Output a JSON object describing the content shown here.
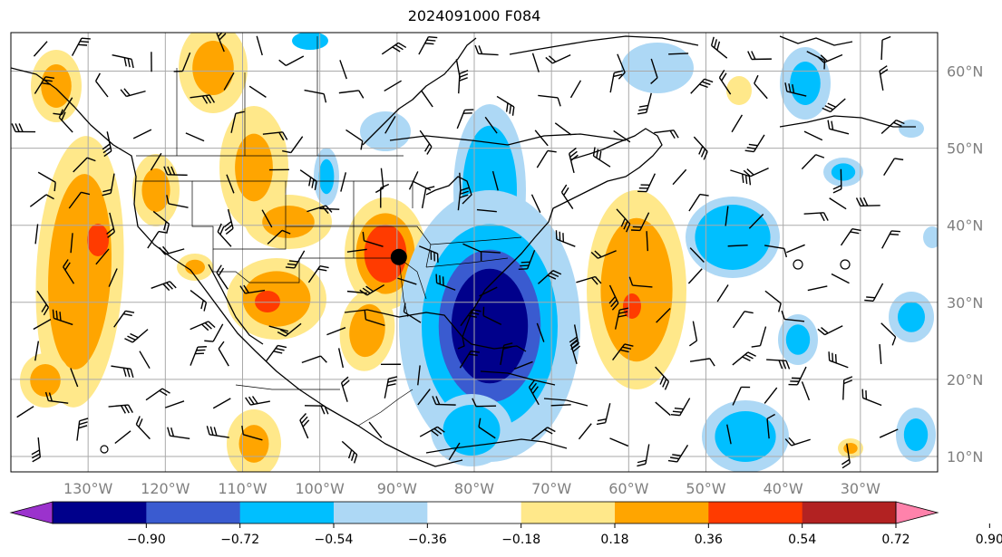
{
  "title": "2024091000 F084",
  "lon_ticks": [
    "130°W",
    "120°W",
    "110°W",
    "100°W",
    "90°W",
    "80°W",
    "70°W",
    "60°W",
    "50°W",
    "40°W",
    "30°W"
  ],
  "lon_values": [
    -130,
    -120,
    -110,
    -100,
    -90,
    -80,
    -70,
    -60,
    -50,
    -40,
    -30
  ],
  "lat_ticks": [
    "60°N",
    "50°N",
    "40°N",
    "30°N",
    "20°N",
    "10°N"
  ],
  "lat_values": [
    60,
    50,
    40,
    30,
    20,
    10
  ],
  "extent": {
    "lon_min": -140,
    "lon_max": -20,
    "lat_min": 8,
    "lat_max": 65
  },
  "colorbar": {
    "labels": [
      "−0.90",
      "−0.72",
      "−0.54",
      "−0.36",
      "−0.18",
      "0.18",
      "0.36",
      "0.54",
      "0.72",
      "0.90"
    ],
    "levels": [
      -0.9,
      -0.72,
      -0.54,
      -0.36,
      -0.18,
      0.18,
      0.36,
      0.54,
      0.72,
      0.9
    ],
    "colors": [
      "#9b32cd",
      "#00008b",
      "#3a5bd0",
      "#00bfff",
      "#add8f5",
      "#ffffff",
      "#ffe88a",
      "#ffa500",
      "#ff3b00",
      "#b22222",
      "#ff82ab"
    ],
    "extend": "both"
  },
  "field_colors": {
    "neg3": "#00008b",
    "neg2": "#3a5bd0",
    "neg1": "#00bfff",
    "neg0": "#add8f5",
    "pos0": "#ffe88a",
    "pos1": "#ffa500",
    "pos2": "#ff3b00"
  },
  "marker": {
    "lon": -90,
    "lat": 36,
    "shape": "filled-circle"
  },
  "features": [
    "coastlines",
    "state-borders",
    "country-borders",
    "gridlines",
    "wind-barbs",
    "shaded-anomaly-field"
  ]
}
